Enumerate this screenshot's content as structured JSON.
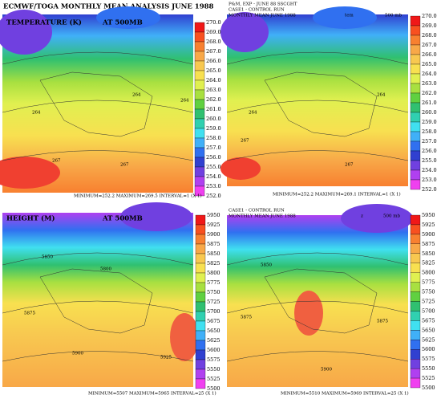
{
  "title": "ECMWF/TOGA MONTHLY MEAN ANALYSIS JUNE 1988",
  "colors": [
    "#f01818",
    "#f85020",
    "#f88030",
    "#f8a848",
    "#f8c850",
    "#f8e050",
    "#e0f050",
    "#a8e040",
    "#60d040",
    "#30c070",
    "#30d0b0",
    "#40e0f0",
    "#40b0f8",
    "#3070f0",
    "#3040d0",
    "#7040e0",
    "#b040f0",
    "#f040f0"
  ],
  "panels": [
    {
      "headers": [
        "TEMPERATURE (K)",
        "AT 500MB"
      ],
      "colorbar": [
        "270.0",
        "269.0",
        "268.0",
        "267.0",
        "266.0",
        "265.0",
        "264.0",
        "263.0",
        "262.0",
        "261.0",
        "260.0",
        "259.0",
        "258.0",
        "257.0",
        "256.0",
        "255.0",
        "254.0",
        "253.0",
        "252.0"
      ],
      "labels": [
        "264",
        "264",
        "264",
        "267",
        "267"
      ],
      "footer": "MINIMUM=252.2 MAXIMUM=269.5 INTERVAL=1 (X 1)"
    },
    {
      "headers": [
        "P&M, EXP - JUNE 88 SSCGHT",
        "CASE1 - CONTROL RUN",
        "MONTHLY MEAN JUNE 1988",
        "tem",
        "500 mb"
      ],
      "colorbar": [
        "270.0",
        "269.0",
        "268.0",
        "267.0",
        "266.0",
        "265.0",
        "264.0",
        "263.0",
        "262.0",
        "261.0",
        "260.0",
        "259.0",
        "258.0",
        "257.0",
        "256.0",
        "255.0",
        "254.0",
        "253.0",
        "252.0"
      ],
      "labels": [
        "264",
        "264",
        "267",
        "267"
      ],
      "footer": "MINIMUM=252.2 MAXIMUM=269.1 INTERVAL=1 (X 1)"
    },
    {
      "headers": [
        "HEIGHT (M)",
        "AT 500MB"
      ],
      "colorbar": [
        "5950",
        "5925",
        "5900",
        "5875",
        "5850",
        "5825",
        "5800",
        "5775",
        "5750",
        "5725",
        "5700",
        "5675",
        "5650",
        "5625",
        "5600",
        "5575",
        "5550",
        "5525",
        "5500"
      ],
      "labels": [
        "5850",
        "5800",
        "5875",
        "5900",
        "5925"
      ],
      "footer": "MINIMUM=5507 MAXIMUM=5965 INTERVAL=25 (X 1)"
    },
    {
      "headers": [
        "CASE1 - CONTROL RUN",
        "MONTHLY MEAN JUNE 1988",
        "z",
        "500 mb"
      ],
      "colorbar": [
        "5950",
        "5925",
        "5900",
        "5875",
        "5850",
        "5825",
        "5800",
        "5775",
        "5750",
        "5725",
        "5700",
        "5675",
        "5650",
        "5625",
        "5600",
        "5575",
        "5550",
        "5525",
        "5500"
      ],
      "labels": [
        "5850",
        "5875",
        "5875",
        "5900"
      ],
      "footer": "MINIMUM=5510 MAXIMUM=5969 INTERVAL=25 (X 1)"
    }
  ]
}
